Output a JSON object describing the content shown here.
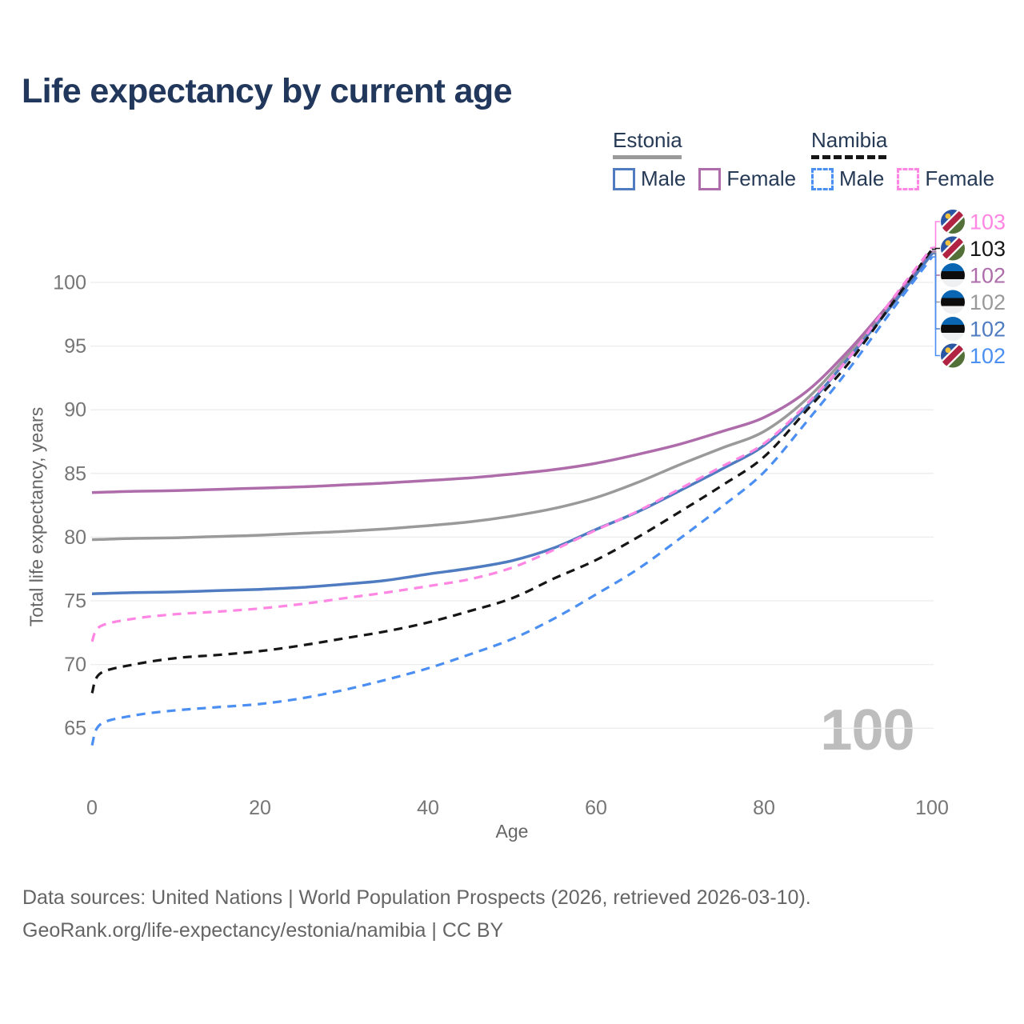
{
  "title": "Life expectancy by current age",
  "watermark_age": "100",
  "legend": {
    "groups": [
      {
        "country": "Estonia",
        "overall_color": "#9a9a9a",
        "dashed": false,
        "items": [
          {
            "label": "Male",
            "color": "#4f7bc0"
          },
          {
            "label": "Female",
            "color": "#ae6cab"
          }
        ]
      },
      {
        "country": "Namibia",
        "overall_color": "#161616",
        "dashed": true,
        "items": [
          {
            "label": "Male",
            "color": "#4b8ff2"
          },
          {
            "label": "Female",
            "color": "#ff86e3"
          }
        ]
      }
    ]
  },
  "footer": {
    "line1": "Data sources: United Nations | World Population Prospects (2026, retrieved 2026-03-10).",
    "line2": "GeoRank.org/life-expectancy/estonia/namibia | CC BY"
  },
  "chart_data": {
    "type": "line",
    "title": "Life expectancy by current age",
    "xlabel": "Age",
    "ylabel": "Total life expectancy, years",
    "xlim": [
      0,
      100
    ],
    "ylim": [
      62,
      104
    ],
    "x_ticks": [
      0,
      20,
      40,
      60,
      80,
      100
    ],
    "y_ticks": [
      65,
      70,
      75,
      80,
      85,
      90,
      95,
      100
    ],
    "grid": "horizontal",
    "legend_position": "top-right",
    "ages": [
      0,
      1,
      5,
      10,
      15,
      20,
      25,
      30,
      35,
      40,
      45,
      50,
      55,
      60,
      65,
      70,
      75,
      80,
      85,
      90,
      95,
      100
    ],
    "series": [
      {
        "name": "Estonia — Female",
        "country": "Estonia",
        "sex": "Female",
        "color": "#ae6cab",
        "dashed": false,
        "flag": "estonia",
        "end_label": "102",
        "label_row": 2,
        "values": [
          83.5,
          83.52,
          83.6,
          83.65,
          83.75,
          83.85,
          83.95,
          84.1,
          84.25,
          84.45,
          84.65,
          84.95,
          85.3,
          85.8,
          86.5,
          87.3,
          88.3,
          89.4,
          91.4,
          94.6,
          98.4,
          102.45
        ]
      },
      {
        "name": "Estonia — Both sexes",
        "country": "Estonia",
        "sex": "Both sexes",
        "color": "#9a9a9a",
        "dashed": false,
        "flag": "estonia",
        "end_label": "102",
        "label_row": 3,
        "values": [
          79.8,
          79.82,
          79.9,
          79.95,
          80.05,
          80.15,
          80.3,
          80.45,
          80.65,
          80.9,
          81.2,
          81.65,
          82.25,
          83.1,
          84.3,
          85.7,
          87.0,
          88.3,
          90.8,
          94.3,
          98.2,
          102.35
        ]
      },
      {
        "name": "Estonia — Male",
        "country": "Estonia",
        "sex": "Male",
        "color": "#4f7bc0",
        "dashed": false,
        "flag": "estonia",
        "end_label": "102",
        "label_row": 4,
        "values": [
          75.55,
          75.57,
          75.65,
          75.7,
          75.8,
          75.9,
          76.05,
          76.3,
          76.6,
          77.1,
          77.55,
          78.15,
          79.15,
          80.6,
          82.0,
          83.65,
          85.35,
          87.2,
          90.2,
          94.0,
          98.0,
          102.25
        ]
      },
      {
        "name": "Namibia — Female",
        "country": "Namibia",
        "sex": "Female",
        "color": "#ff86e3",
        "dashed": true,
        "flag": "namibia",
        "end_label": "103",
        "label_row": 0,
        "values": [
          71.8,
          73.0,
          73.6,
          73.95,
          74.15,
          74.4,
          74.75,
          75.2,
          75.65,
          76.15,
          76.7,
          77.6,
          79.0,
          80.55,
          82.05,
          83.8,
          85.55,
          87.35,
          90.4,
          94.0,
          98.45,
          102.75
        ]
      },
      {
        "name": "Namibia — Both sexes",
        "country": "Namibia",
        "sex": "Both sexes",
        "color": "#161616",
        "dashed": true,
        "flag": "namibia",
        "end_label": "103",
        "label_row": 1,
        "values": [
          67.75,
          69.3,
          70.0,
          70.5,
          70.75,
          71.05,
          71.5,
          72.05,
          72.6,
          73.3,
          74.2,
          75.2,
          76.75,
          78.2,
          80.0,
          82.0,
          84.05,
          86.3,
          89.9,
          93.6,
          98.1,
          102.6
        ]
      },
      {
        "name": "Namibia — Male",
        "country": "Namibia",
        "sex": "Male",
        "color": "#4b8ff2",
        "dashed": true,
        "flag": "namibia",
        "end_label": "102",
        "label_row": 5,
        "values": [
          63.65,
          65.3,
          66.0,
          66.4,
          66.65,
          66.9,
          67.35,
          68.0,
          68.8,
          69.7,
          70.8,
          72.0,
          73.6,
          75.5,
          77.5,
          79.9,
          82.4,
          85.1,
          89.0,
          93.1,
          97.6,
          102.0
        ]
      }
    ]
  }
}
